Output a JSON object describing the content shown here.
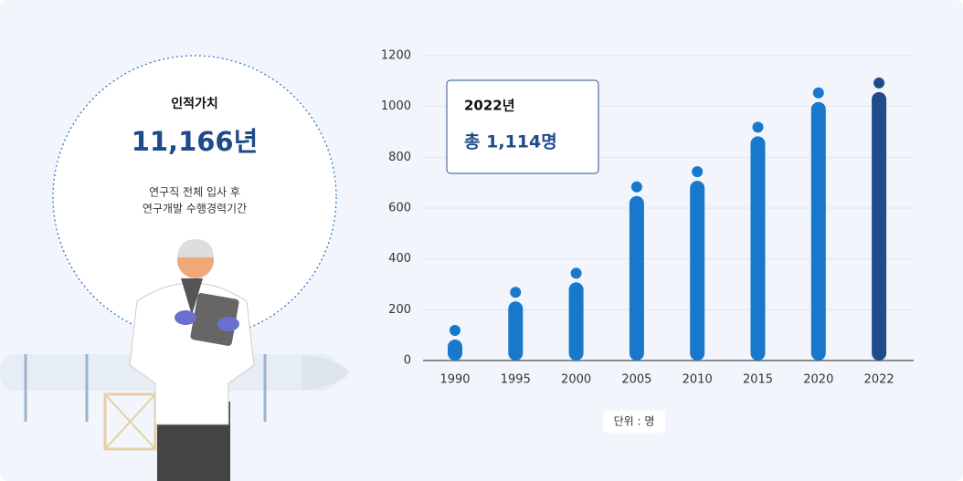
{
  "info": {
    "label": "인적가치",
    "value": "11,166년",
    "description": [
      "연구직 전체 입사 후",
      "연구개발 수행경력기간"
    ]
  },
  "chart_data": {
    "type": "bar",
    "categories": [
      "1990",
      "1995",
      "2000",
      "2005",
      "2010",
      "2015",
      "2020",
      "2022"
    ],
    "values": [
      140,
      290,
      365,
      705,
      765,
      940,
      1075,
      1114
    ],
    "colors": [
      "#1778cc",
      "#1778cc",
      "#1778cc",
      "#1778cc",
      "#1778cc",
      "#1778cc",
      "#1778cc",
      "#1f4b8b"
    ],
    "ylim": [
      0,
      1200
    ],
    "yticks": [
      0,
      200,
      400,
      600,
      800,
      1000,
      1200
    ],
    "grid": true,
    "annotation": {
      "title": "2022년",
      "text": "총 1,114명"
    },
    "unit_note": "단위 : 명"
  }
}
